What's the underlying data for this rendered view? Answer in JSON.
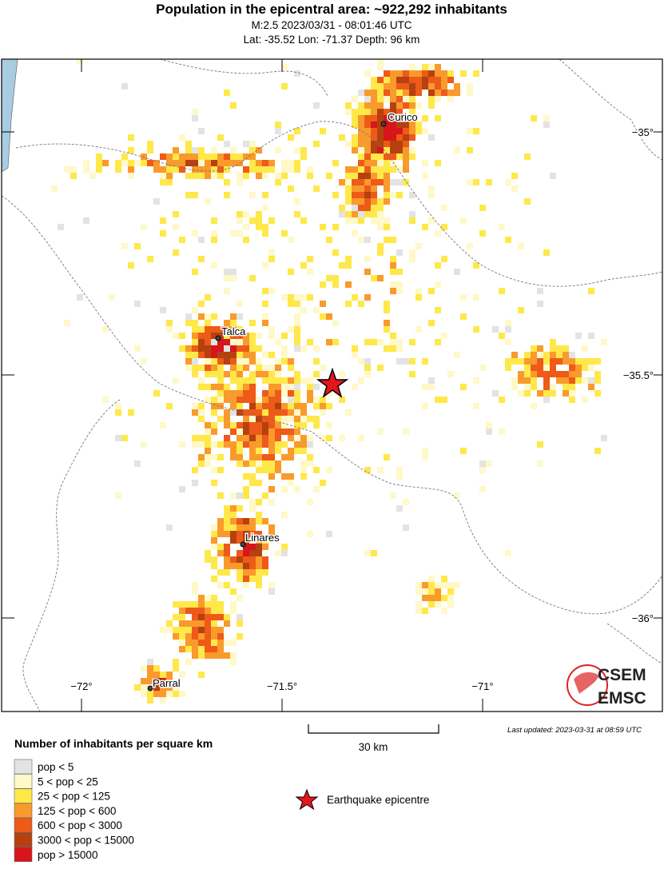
{
  "header": {
    "title": "Population in the epicentral area: ~922,292 inhabitants",
    "event": "M:2.5 2023/03/31 - 08:01:46 UTC",
    "location": "Lat: -35.52 Lon: -71.37 Depth: 96 km"
  },
  "map": {
    "lat_ticks": [
      {
        "value": -35,
        "label": "−35°"
      },
      {
        "value": -35.5,
        "label": "−35.5°"
      },
      {
        "value": -36,
        "label": "−36°"
      }
    ],
    "lon_ticks": [
      {
        "value": -72,
        "label": "−72°"
      },
      {
        "value": -71.5,
        "label": "−71.5°"
      },
      {
        "value": -71,
        "label": "−71°"
      }
    ],
    "cities": [
      "Curico",
      "Talca",
      "Linares",
      "Parral"
    ]
  },
  "scale_label": "30 km",
  "updated": "Last updated: 2023-03-31 at 08:59 UTC",
  "legend": {
    "title": "Number of inhabitants per square km",
    "items": [
      {
        "label": "pop < 5",
        "color": "#e3e3e3"
      },
      {
        "label": "5 < pop < 25",
        "color": "#fff8c8"
      },
      {
        "label": "25 < pop < 125",
        "color": "#ffe84a"
      },
      {
        "label": "125 < pop < 600",
        "color": "#f99a2c"
      },
      {
        "label": "600 < pop < 3000",
        "color": "#ee5a18"
      },
      {
        "label": "3000 < pop < 15000",
        "color": "#b5410f"
      },
      {
        "label": "pop > 15000",
        "color": "#d6161a"
      }
    ],
    "epicentre": "Earthquake epicentre"
  },
  "logo": [
    "CSEM",
    "EMSC"
  ]
}
